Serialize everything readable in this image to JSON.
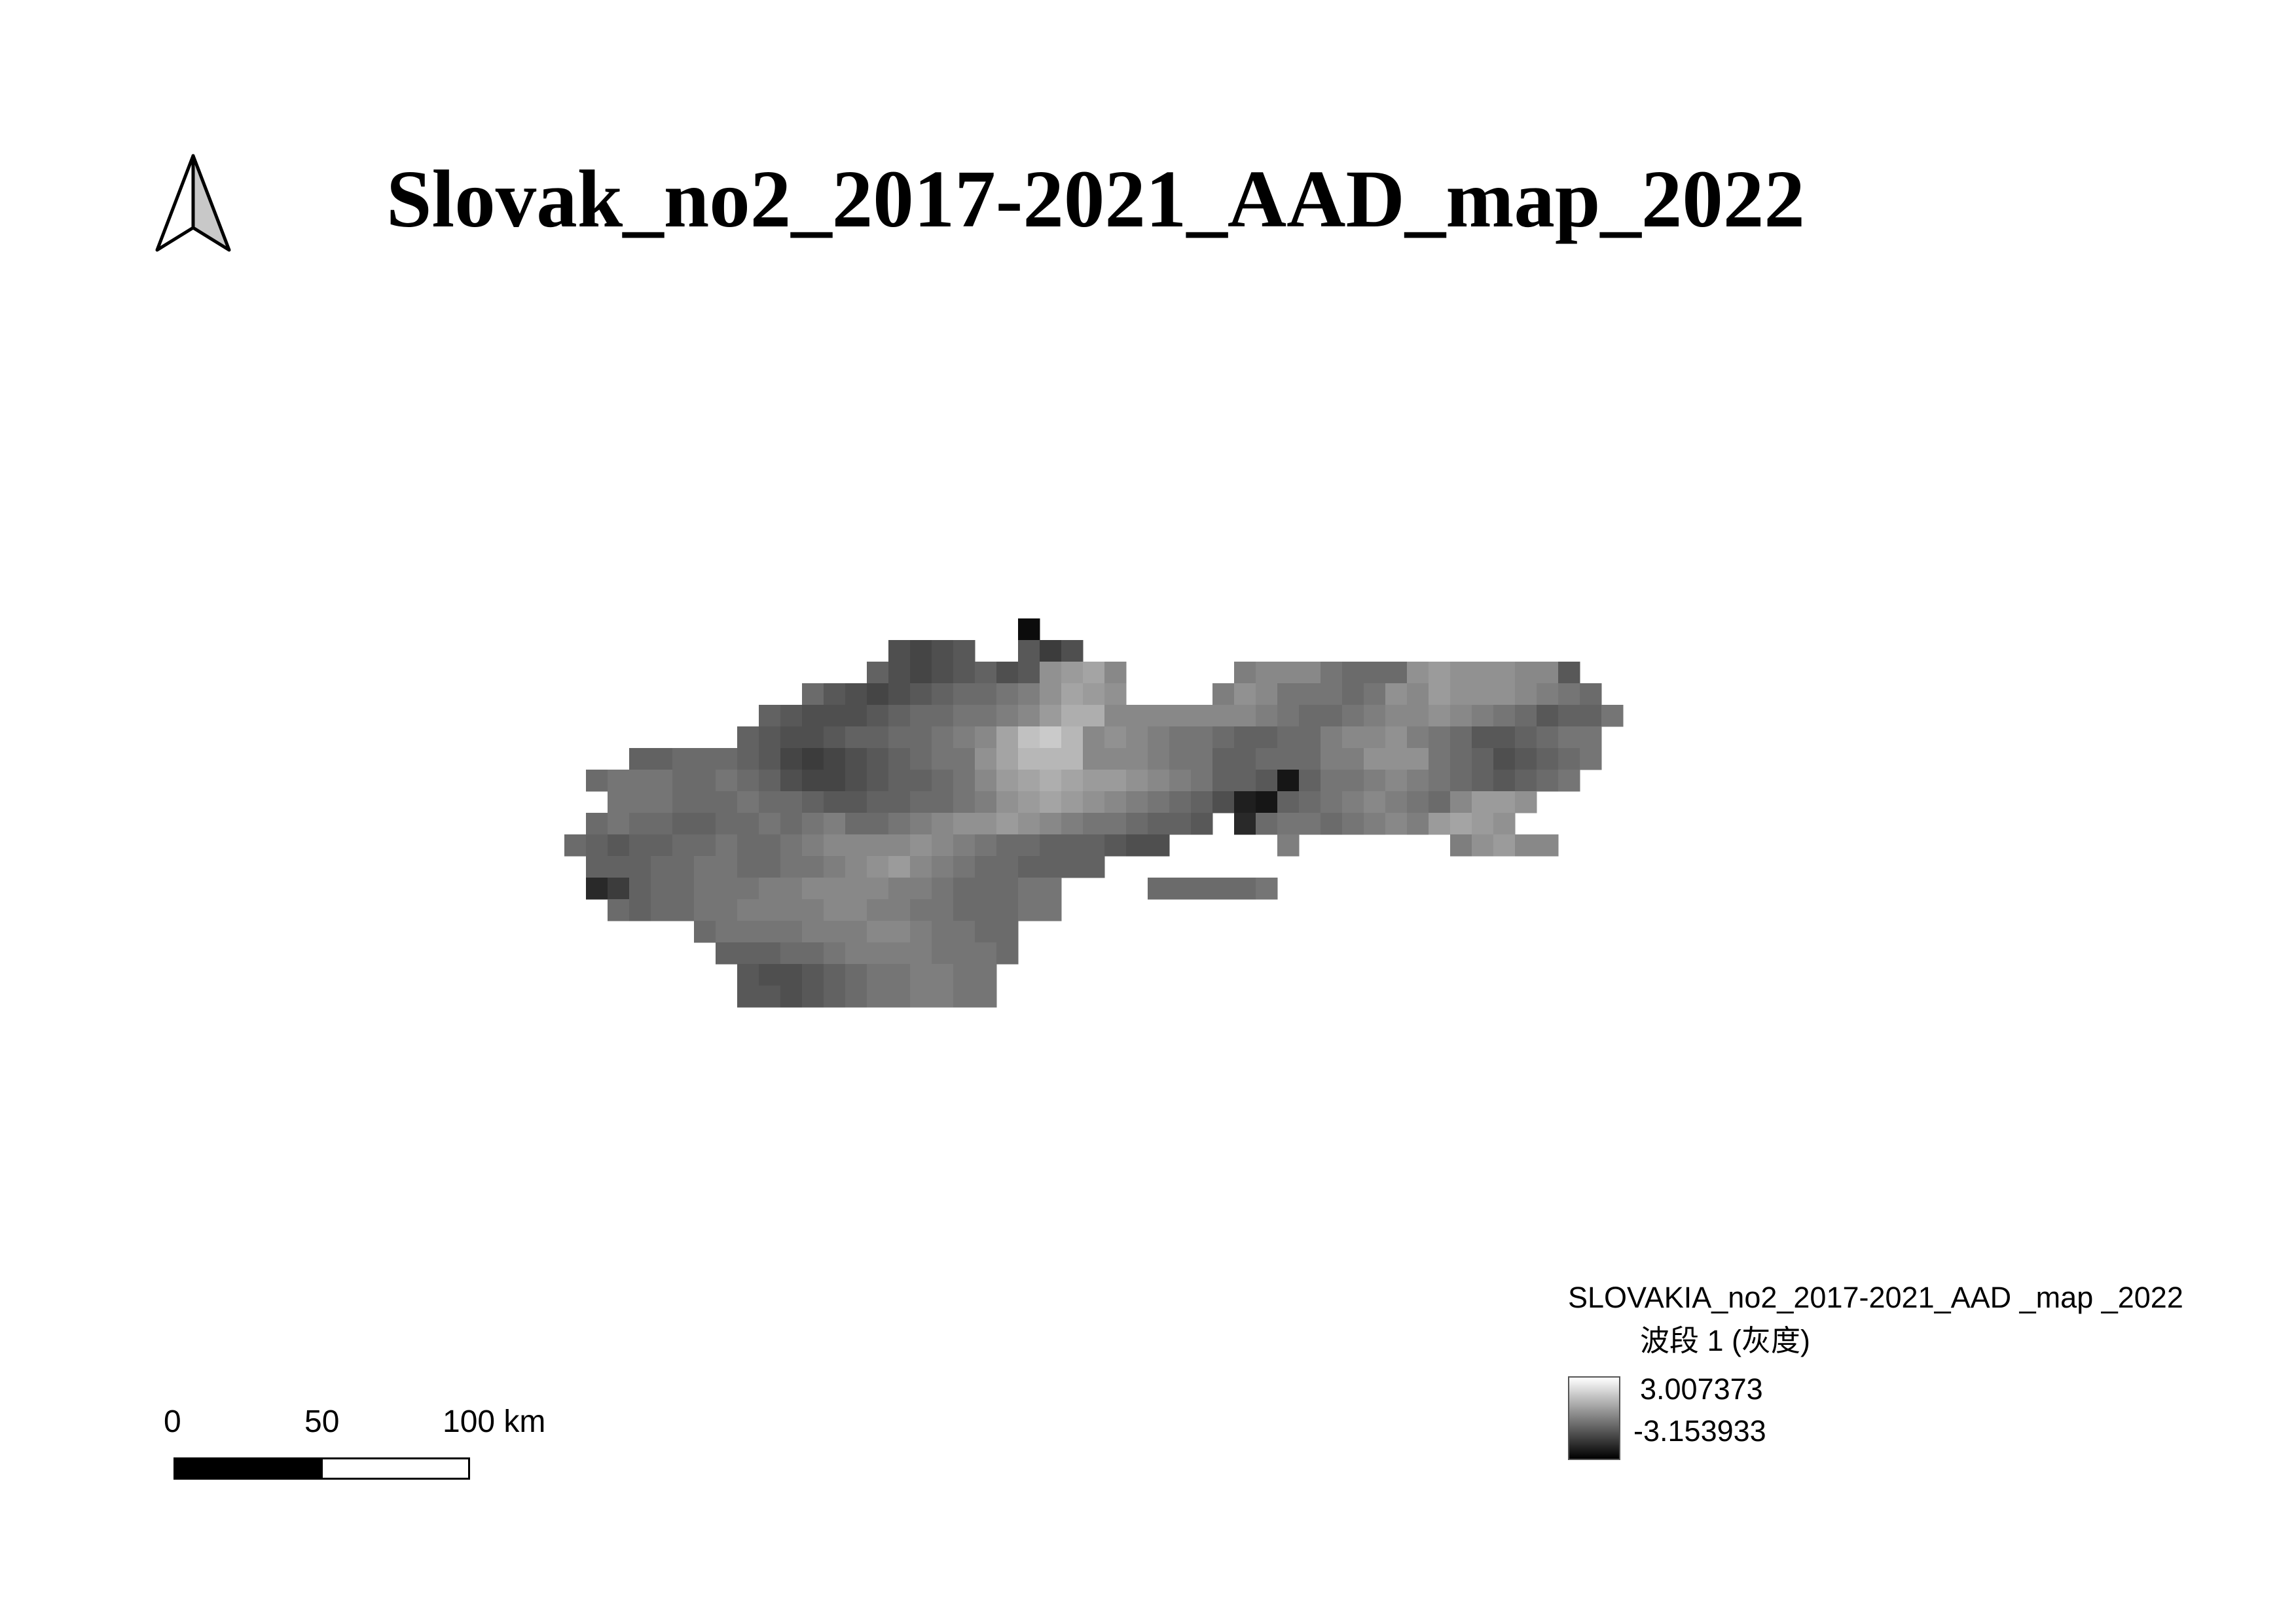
{
  "map": {
    "title": "Slovak_no2_2017-2021_AAD_map_2022",
    "colors": {
      "ink": "#000000",
      "background": "#ffffff",
      "ramp_high": "#ffffff",
      "ramp_low": "#000000"
    }
  },
  "north_arrow": {
    "icon": "north-arrow-icon"
  },
  "scalebar": {
    "labels": [
      "0",
      "50",
      "100 km"
    ],
    "segments": [
      "black",
      "white"
    ]
  },
  "legend": {
    "layer_name": "SLOVAKIA_no2_2017-2021_AAD _map _2022",
    "band_label": "波段 1 (灰度)",
    "max_value": "3.007373",
    "min_value": "-3.153933"
  },
  "raster": {
    "value_min": -3.153933,
    "value_max": 3.007373,
    "rows": [
      ".........................A..............................",
      "...................HGHI..IFH.............................",
      "..................JHGHIJHIOPQN.....MNNNLKKKOPOOONNI.....",
      "...............KIHGHIJKKLMOQPO....MONLLLKLONPOOONMLK....",
      ".............JIHHHIJKKLLMNPRRNNNNNNNMLKKLMNNONMLKIJJL...",
      "............JIHHIJJKKLMNQTUSNONMLLKJJKKMNNOMLKIIJKLL...",
      ".......JJKKKJIGFGHIJKLLOQSSSNNNMLLJJKKKMMOOOLKJHIJKL...",
      ".....KLLLKKLKJHGGHIJJKLNPQRQPPONMLJJIBJLLMNMLKJIJKL....",
      "......LLLKKKLKKJIIJJKKLMOPQPONMLKJHCBJKLMNMLKNPPO......",
      ".....KLKKJJKKLKLMKKLMNOOPONMLLKJJI.DKLLKLMNMPQPO......",
      "....KJIJJKKLKKLMNNNNONMLKKJJJIHH.....M.......MOPNN......",
      ".....JJJKKLLKKLLMNOPNMLKKJJJJ...........................",
      ".....DFJKKLLLMMNNNNMMLKKKLL....KKKKKL...................",
      "......KJKKLLMMMMNNMMLLKKKLL.............................",
      "..........KLLLLMMMNNMLLKK...............................",
      "...........JJJKKLMMMMLLLK...............................",
      "............IHHIJKLLMMLL................................",
      "............IIHIJKLLMMLL................................"
    ]
  }
}
